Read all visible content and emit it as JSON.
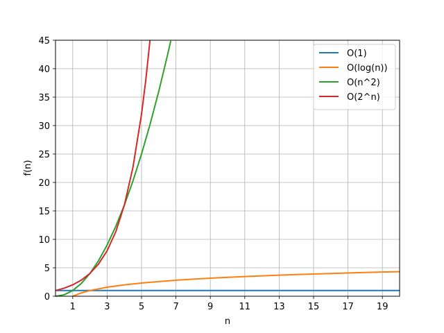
{
  "chart_data": {
    "type": "line",
    "title": "",
    "xlabel": "n",
    "ylabel": "f(n)",
    "xlim": [
      0,
      20
    ],
    "ylim": [
      0,
      45
    ],
    "x_ticks": [
      1,
      3,
      5,
      7,
      9,
      11,
      13,
      15,
      17,
      19
    ],
    "y_ticks": [
      0,
      5,
      10,
      15,
      20,
      25,
      30,
      35,
      40,
      45
    ],
    "grid": true,
    "legend_position": "top-right",
    "series": [
      {
        "name": "O(1)",
        "color": "#1f77b4",
        "x": [
          0,
          2,
          4,
          6,
          8,
          10,
          12,
          14,
          16,
          18,
          20
        ],
        "y": [
          1,
          1,
          1,
          1,
          1,
          1,
          1,
          1,
          1,
          1,
          1
        ]
      },
      {
        "name": "O(log(n))",
        "color": "#ff7f0e",
        "x": [
          1,
          1.5,
          2,
          3,
          4,
          5,
          6,
          7,
          8,
          9,
          10,
          11,
          12,
          13,
          14,
          15,
          16,
          17,
          18,
          19,
          20
        ],
        "y": [
          0,
          0.58,
          1.0,
          1.58,
          2.0,
          2.32,
          2.58,
          2.81,
          3.0,
          3.17,
          3.32,
          3.46,
          3.58,
          3.7,
          3.81,
          3.91,
          4.0,
          4.09,
          4.17,
          4.25,
          4.32
        ]
      },
      {
        "name": "O(n^2)",
        "color": "#2ca02c",
        "x": [
          0,
          0.5,
          1,
          1.5,
          2,
          2.5,
          3,
          3.5,
          4,
          4.5,
          5,
          5.5,
          6,
          6.5,
          6.7
        ],
        "y": [
          0,
          0.25,
          1,
          2.25,
          4,
          6.25,
          9,
          12.25,
          16,
          20.25,
          25,
          30.25,
          36,
          42.25,
          44.89
        ]
      },
      {
        "name": "O(2^n)",
        "color": "#d62728",
        "x": [
          0,
          0.5,
          1,
          1.5,
          2,
          2.5,
          3,
          3.5,
          4,
          4.5,
          5,
          5.25,
          5.49
        ],
        "y": [
          1,
          1.41,
          2,
          2.83,
          4,
          5.66,
          8,
          11.31,
          16,
          22.63,
          32,
          38.05,
          44.94
        ]
      }
    ]
  }
}
